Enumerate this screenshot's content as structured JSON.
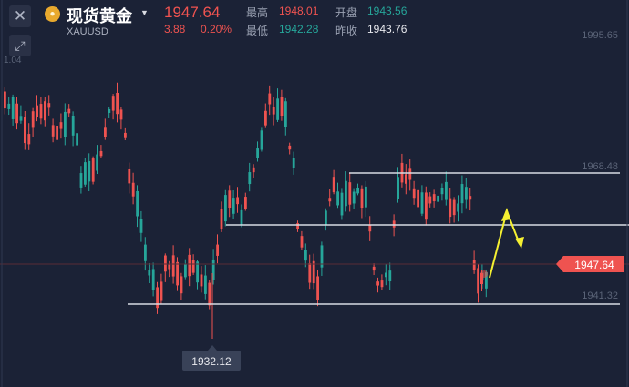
{
  "header": {
    "close_icon": "close-icon",
    "expand_icon": "expand-icon",
    "coin_glyph": "●",
    "instrument_name": "现货黄金",
    "symbol": "XAUUSD",
    "last_price": "1947.64",
    "change": "3.88",
    "change_pct": "0.20%",
    "high_label": "最高",
    "high_value": "1948.01",
    "open_label": "开盘",
    "open_value": "1943.56",
    "low_label": "最低",
    "low_value": "1942.28",
    "prev_close_label": "昨收",
    "prev_close_value": "1943.76",
    "dropdown_glyph": "▼"
  },
  "colors": {
    "up": "#26a69a",
    "down": "#ef5350",
    "background": "#1b2236",
    "annotation": "#f5f032"
  },
  "chart_data": {
    "type": "candlestick",
    "price_tags": {
      "top_label": "1995.65",
      "left_clipped": "1.04",
      "resistance": "1968.48",
      "current": "1947.64",
      "support": "1941.32",
      "low_marker": "1932.12"
    },
    "horizontal_lines": [
      1968.48,
      1958.2,
      1941.32
    ],
    "annotation": "yellow arrow up then down"
  }
}
